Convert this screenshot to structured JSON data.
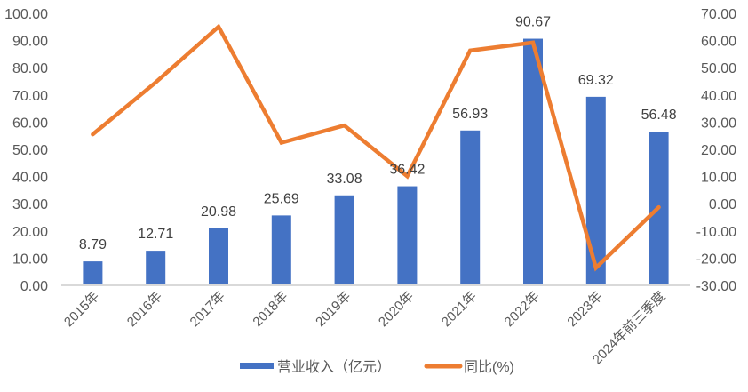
{
  "chart_data": {
    "type": "bar+line",
    "title": "",
    "categories": [
      "2015年",
      "2016年",
      "2017年",
      "2018年",
      "2019年",
      "2020年",
      "2021年",
      "2022年",
      "2023年",
      "2024年前三季度"
    ],
    "series": [
      {
        "name": "营业收入（亿元）",
        "type": "bar",
        "axis": "left",
        "color": "#4472C4",
        "values": [
          8.79,
          12.71,
          20.98,
          25.69,
          33.08,
          36.42,
          56.93,
          90.67,
          69.32,
          56.48
        ],
        "data_labels": [
          "8.79",
          "12.71",
          "20.98",
          "25.69",
          "33.08",
          "36.42",
          "56.93",
          "90.67",
          "69.32",
          "56.48"
        ]
      },
      {
        "name": "同比(%)",
        "type": "line",
        "axis": "right",
        "color": "#ED7D31",
        "values": [
          25.5,
          44.6,
          65.07,
          22.45,
          28.77,
          10.1,
          56.32,
          59.27,
          -23.55,
          -1.3
        ]
      }
    ],
    "left_axis": {
      "min": 0,
      "max": 100,
      "step": 10,
      "ticks": [
        "0.00",
        "10.00",
        "20.00",
        "30.00",
        "40.00",
        "50.00",
        "60.00",
        "70.00",
        "80.00",
        "90.00",
        "100.00"
      ]
    },
    "right_axis": {
      "min": -30,
      "max": 70,
      "step": 10,
      "ticks": [
        "-30.00",
        "-20.00",
        "-10.00",
        "0.00",
        "10.00",
        "20.00",
        "30.00",
        "40.00",
        "50.00",
        "60.00",
        "70.00"
      ]
    },
    "xlabel": "",
    "ylabel": "",
    "grid": false,
    "legend": {
      "position": "bottom",
      "entries": [
        {
          "label": "营业收入（亿元）",
          "color": "#4472C4",
          "marker": "bar"
        },
        {
          "label": "同比(%)",
          "color": "#ED7D31",
          "marker": "line"
        }
      ]
    }
  }
}
